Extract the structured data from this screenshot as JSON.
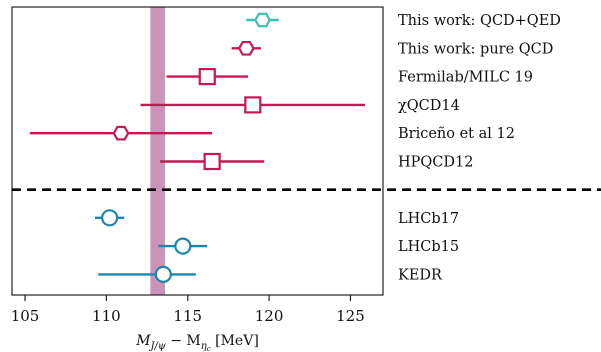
{
  "chart_data": {
    "type": "scatter",
    "subtype": "forest-plot",
    "title": "",
    "xlabel_parts": {
      "main": "M",
      "sub1": "J/ψ",
      "minus": " − M",
      "sub2": "η",
      "sub2_sub": "c",
      "unit": " [MeV]"
    },
    "ylabel": "",
    "xlim": [
      104.2,
      127.0
    ],
    "xticks": [
      105,
      110,
      115,
      120,
      125
    ],
    "grid": false,
    "band": {
      "low": 112.7,
      "high": 113.6,
      "color": "#c994b8"
    },
    "divider_after_row": 5,
    "rows": [
      {
        "label": "This work: QCD+QED",
        "value": 119.6,
        "err_low": 1.0,
        "err_high": 1.0,
        "marker": "hexagon",
        "color": "#3cc0b4"
      },
      {
        "label": "This work: pure QCD",
        "value": 118.6,
        "err_low": 0.9,
        "err_high": 0.9,
        "marker": "hexagon",
        "color": "#c8174f"
      },
      {
        "label": "Fermilab/MILC 19",
        "value": 116.2,
        "err_low": 2.5,
        "err_high": 2.5,
        "marker": "square",
        "color": "#c8174f"
      },
      {
        "label": "χQCD14",
        "value": 119.0,
        "err_low": 6.9,
        "err_high": 6.9,
        "marker": "square",
        "color": "#c8174f"
      },
      {
        "label": "Briceño et al 12",
        "value": 110.9,
        "err_low": 5.6,
        "err_high": 5.6,
        "marker": "hexagon",
        "color": "#c8174f"
      },
      {
        "label": "HPQCD12",
        "value": 116.5,
        "err_low": 3.2,
        "err_high": 3.2,
        "marker": "square",
        "color": "#c8174f"
      },
      {
        "label": "LHCb17",
        "value": 110.2,
        "err_low": 0.9,
        "err_high": 0.9,
        "marker": "circle",
        "color": "#1e86ad"
      },
      {
        "label": "LHCb15",
        "value": 114.7,
        "err_low": 1.5,
        "err_high": 1.5,
        "marker": "circle",
        "color": "#1e86ad"
      },
      {
        "label": "KEDR",
        "value": 113.5,
        "err_low": 4.0,
        "err_high": 2.0,
        "marker": "circle",
        "color": "#1e86ad"
      }
    ]
  }
}
